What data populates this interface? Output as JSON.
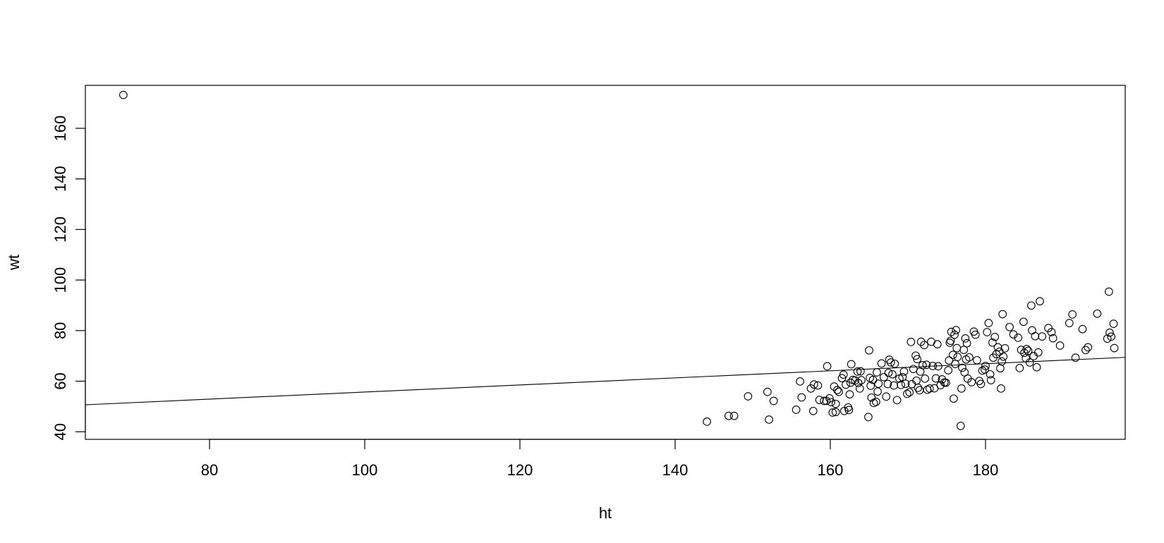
{
  "chart_data": {
    "type": "scatter",
    "title": "",
    "xlabel": "ht",
    "ylabel": "wt",
    "xlim": [
      64,
      198
    ],
    "ylim": [
      37,
      177
    ],
    "xticks": [
      80,
      100,
      120,
      140,
      160,
      180
    ],
    "yticks": [
      40,
      60,
      80,
      100,
      120,
      140,
      160
    ],
    "grid": false,
    "legend": "none",
    "regression_line": {
      "intercept": 41.7,
      "slope": 0.14
    },
    "points": [
      [
        68.9,
        173.2
      ],
      [
        144.1,
        44.0
      ],
      [
        146.9,
        46.3
      ],
      [
        147.6,
        46.3
      ],
      [
        149.4,
        54.0
      ],
      [
        151.9,
        55.8
      ],
      [
        152.1,
        44.8
      ],
      [
        152.7,
        52.2
      ],
      [
        155.6,
        48.7
      ],
      [
        156.1,
        59.9
      ],
      [
        156.3,
        53.6
      ],
      [
        157.5,
        57.1
      ],
      [
        157.8,
        48.2
      ],
      [
        157.9,
        58.7
      ],
      [
        158.4,
        58.3
      ],
      [
        158.6,
        52.6
      ],
      [
        159.2,
        52.2
      ],
      [
        159.5,
        52.2
      ],
      [
        159.6,
        65.9
      ],
      [
        159.9,
        53.2
      ],
      [
        160.1,
        51.7
      ],
      [
        160.3,
        47.6
      ],
      [
        160.5,
        57.9
      ],
      [
        160.7,
        47.8
      ],
      [
        160.7,
        51.0
      ],
      [
        160.9,
        56.5
      ],
      [
        161.1,
        55.8
      ],
      [
        161.5,
        61.2
      ],
      [
        161.7,
        62.6
      ],
      [
        161.8,
        48.2
      ],
      [
        162.0,
        58.6
      ],
      [
        162.3,
        49.6
      ],
      [
        162.4,
        48.6
      ],
      [
        162.5,
        54.8
      ],
      [
        162.6,
        59.4
      ],
      [
        162.7,
        66.7
      ],
      [
        162.9,
        60.5
      ],
      [
        163.2,
        60.3
      ],
      [
        163.5,
        63.8
      ],
      [
        163.6,
        59.3
      ],
      [
        163.8,
        57.1
      ],
      [
        163.9,
        63.9
      ],
      [
        164.0,
        60.4
      ],
      [
        164.9,
        45.8
      ],
      [
        165.0,
        72.2
      ],
      [
        165.1,
        61.3
      ],
      [
        165.2,
        58.2
      ],
      [
        165.3,
        53.5
      ],
      [
        165.5,
        60.5
      ],
      [
        165.6,
        51.4
      ],
      [
        165.9,
        51.8
      ],
      [
        166.0,
        63.5
      ],
      [
        166.2,
        59.0
      ],
      [
        166.1,
        55.9
      ],
      [
        166.6,
        67.0
      ],
      [
        166.9,
        61.6
      ],
      [
        167.2,
        53.9
      ],
      [
        167.4,
        58.9
      ],
      [
        167.5,
        63.3
      ],
      [
        167.6,
        68.5
      ],
      [
        167.8,
        67.4
      ],
      [
        168.0,
        62.7
      ],
      [
        168.2,
        58.3
      ],
      [
        168.3,
        66.9
      ],
      [
        168.6,
        52.5
      ],
      [
        168.9,
        61.0
      ],
      [
        169.1,
        58.5
      ],
      [
        169.3,
        61.6
      ],
      [
        169.5,
        63.8
      ],
      [
        169.7,
        59.0
      ],
      [
        169.9,
        55.0
      ],
      [
        170.2,
        55.6
      ],
      [
        170.4,
        75.5
      ],
      [
        170.5,
        58.8
      ],
      [
        170.7,
        64.8
      ],
      [
        171.0,
        70.1
      ],
      [
        171.1,
        60.2
      ],
      [
        171.2,
        68.7
      ],
      [
        171.3,
        57.4
      ],
      [
        171.5,
        56.4
      ],
      [
        171.6,
        63.8
      ],
      [
        171.7,
        75.6
      ],
      [
        171.9,
        66.3
      ],
      [
        172.1,
        74.3
      ],
      [
        172.2,
        61.0
      ],
      [
        172.4,
        66.5
      ],
      [
        172.5,
        56.6
      ],
      [
        172.8,
        57.1
      ],
      [
        173.0,
        75.6
      ],
      [
        173.2,
        66.0
      ],
      [
        173.4,
        57.2
      ],
      [
        173.6,
        61.1
      ],
      [
        173.8,
        74.6
      ],
      [
        173.9,
        65.9
      ],
      [
        174.2,
        58.4
      ],
      [
        174.4,
        60.7
      ],
      [
        174.7,
        59.5
      ],
      [
        174.9,
        59.4
      ],
      [
        175.2,
        64.3
      ],
      [
        175.3,
        68.2
      ],
      [
        175.4,
        75.2
      ],
      [
        175.5,
        76.0
      ],
      [
        175.6,
        79.5
      ],
      [
        175.8,
        70.4
      ],
      [
        175.9,
        53.1
      ],
      [
        176.0,
        78.4
      ],
      [
        176.1,
        66.8
      ],
      [
        176.2,
        80.2
      ],
      [
        176.3,
        73.1
      ],
      [
        176.4,
        69.6
      ],
      [
        176.8,
        42.3
      ],
      [
        176.9,
        57.1
      ],
      [
        177.0,
        65.3
      ],
      [
        177.2,
        72.4
      ],
      [
        177.3,
        63.5
      ],
      [
        177.4,
        76.9
      ],
      [
        177.5,
        68.6
      ],
      [
        177.6,
        75.0
      ],
      [
        177.7,
        61.0
      ],
      [
        177.9,
        69.4
      ],
      [
        178.2,
        59.6
      ],
      [
        178.5,
        79.6
      ],
      [
        178.7,
        78.4
      ],
      [
        178.9,
        68.3
      ],
      [
        179.2,
        60.1
      ],
      [
        179.4,
        58.9
      ],
      [
        179.6,
        64.2
      ],
      [
        179.9,
        64.6
      ],
      [
        180.0,
        66.0
      ],
      [
        180.2,
        79.4
      ],
      [
        180.4,
        83.0
      ],
      [
        180.6,
        62.7
      ],
      [
        180.7,
        60.4
      ],
      [
        180.9,
        75.3
      ],
      [
        181.0,
        69.3
      ],
      [
        181.2,
        77.5
      ],
      [
        181.4,
        70.7
      ],
      [
        181.6,
        73.4
      ],
      [
        181.8,
        71.7
      ],
      [
        181.9,
        65.1
      ],
      [
        182.0,
        57.1
      ],
      [
        182.1,
        67.8
      ],
      [
        182.2,
        86.5
      ],
      [
        182.3,
        69.7
      ],
      [
        182.5,
        73.0
      ],
      [
        183.1,
        81.4
      ],
      [
        183.6,
        78.5
      ],
      [
        184.2,
        77.2
      ],
      [
        184.4,
        65.2
      ],
      [
        184.6,
        72.4
      ],
      [
        184.9,
        83.5
      ],
      [
        185.0,
        71.2
      ],
      [
        185.2,
        69.1
      ],
      [
        185.3,
        72.7
      ],
      [
        185.5,
        72.0
      ],
      [
        185.7,
        67.4
      ],
      [
        185.9,
        89.9
      ],
      [
        186.0,
        80.1
      ],
      [
        186.2,
        69.9
      ],
      [
        186.4,
        77.8
      ],
      [
        186.6,
        65.5
      ],
      [
        186.8,
        71.4
      ],
      [
        187.0,
        91.6
      ],
      [
        187.3,
        77.7
      ],
      [
        188.1,
        81.0
      ],
      [
        188.5,
        79.4
      ],
      [
        188.7,
        77.0
      ],
      [
        189.6,
        74.1
      ],
      [
        190.8,
        83.0
      ],
      [
        191.2,
        86.4
      ],
      [
        191.6,
        69.3
      ],
      [
        192.5,
        80.6
      ],
      [
        192.9,
        72.3
      ],
      [
        193.2,
        73.4
      ],
      [
        194.4,
        86.7
      ],
      [
        195.7,
        76.8
      ],
      [
        195.9,
        95.4
      ],
      [
        196.0,
        79.2
      ],
      [
        196.2,
        77.6
      ],
      [
        196.5,
        82.7
      ],
      [
        196.6,
        73.1
      ]
    ]
  }
}
